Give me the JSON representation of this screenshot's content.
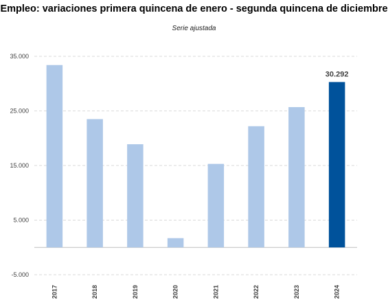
{
  "chart_data": {
    "type": "bar",
    "title": "Empleo: variaciones primera quincena de enero - segunda quincena de diciembre",
    "subtitle": "Serie ajustada",
    "xlabel": "",
    "ylabel": "",
    "categories": [
      "2017",
      "2018",
      "2019",
      "2020",
      "2021",
      "2022",
      "2023",
      "2024"
    ],
    "values": [
      33400,
      23500,
      18900,
      1700,
      15300,
      22200,
      25700,
      30292
    ],
    "highlight_index": 7,
    "data_labels": [
      {
        "index": 7,
        "text": "30.292"
      }
    ],
    "ylim": [
      -5000,
      35000
    ],
    "yticks": [
      {
        "value": 35000,
        "label": "35.000"
      },
      {
        "value": 25000,
        "label": "25.000"
      },
      {
        "value": 15000,
        "label": "15.000"
      },
      {
        "value": 5000,
        "label": "5.000"
      },
      {
        "value": -5000,
        "label": "-5.000"
      }
    ],
    "grid": true,
    "grid_style": "dashed",
    "legend": "none",
    "colors": {
      "bar": "#aec8e8",
      "highlight_bar": "#00529b",
      "grid": "#d9d9d9",
      "zero_line": "#bfbfbf"
    }
  }
}
